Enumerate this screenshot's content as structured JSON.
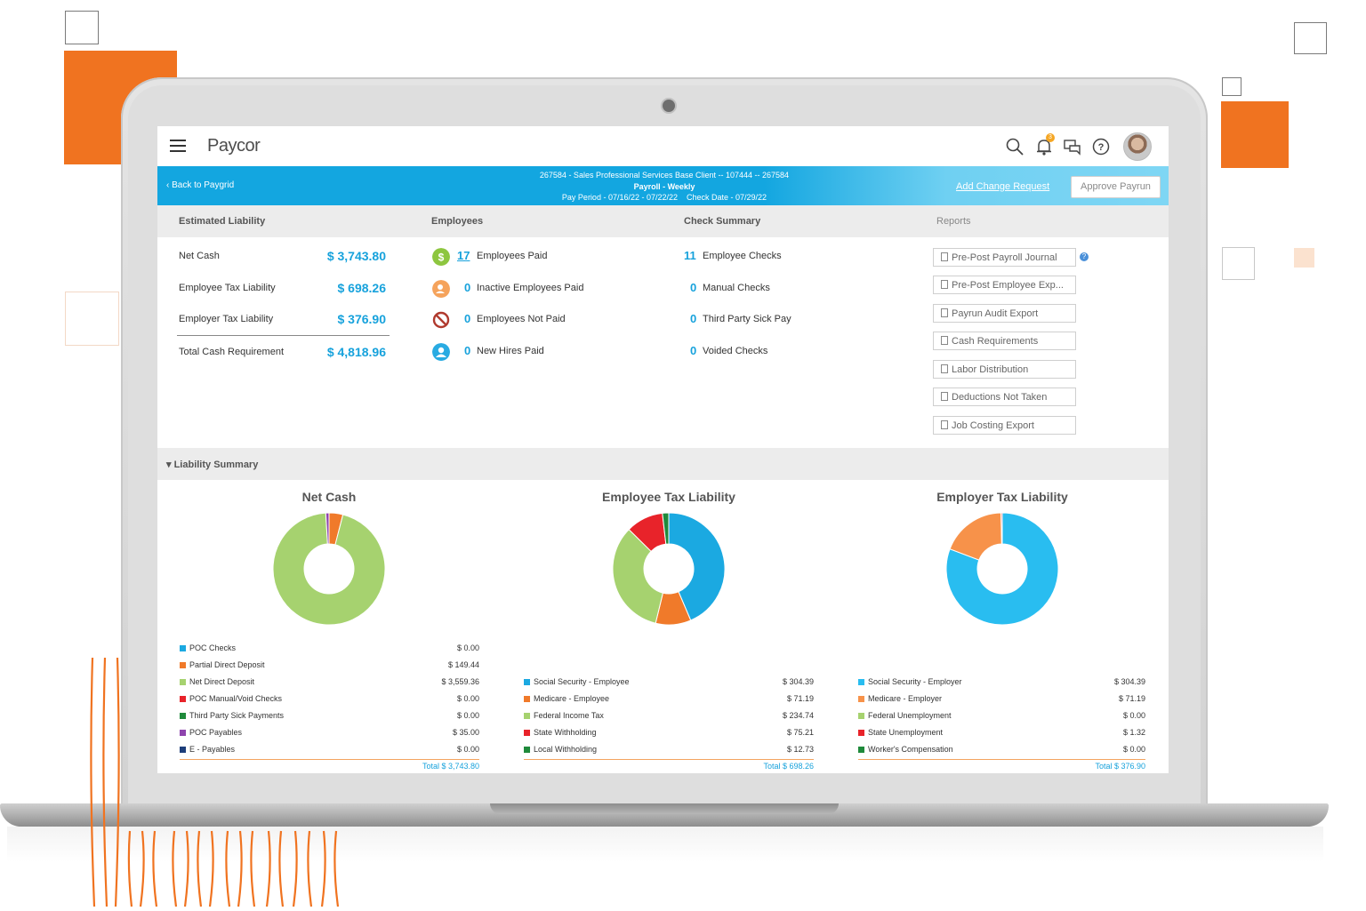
{
  "app": {
    "logo": "Paycor",
    "notification_count": "3"
  },
  "bluebar": {
    "back_label": "Back to Paygrid",
    "client_line": "267584 - Sales Professional Services Base Client -- 107444 -- 267584",
    "payroll_line": "Payroll - Weekly",
    "period_line": "Pay Period - 07/16/22 - 07/22/22    Check Date - 07/29/22",
    "add_change_label": "Add Change Request",
    "approve_label": "Approve Payrun"
  },
  "sections": {
    "estimated_liability": "Estimated Liability",
    "employees": "Employees",
    "check_summary": "Check Summary",
    "reports": "Reports"
  },
  "liability": [
    {
      "label": "Net Cash",
      "amount": "$ 3,743.80"
    },
    {
      "label": "Employee Tax Liability",
      "amount": "$ 698.26"
    },
    {
      "label": "Employer Tax Liability",
      "amount": "$ 376.90"
    },
    {
      "label": "Total Cash Requirement",
      "amount": "$ 4,818.96"
    }
  ],
  "employees": [
    {
      "count": "17",
      "label": "Employees Paid",
      "icon": "dollar-icon",
      "color": "#8dc63f"
    },
    {
      "count": "0",
      "label": "Inactive Employees Paid",
      "icon": "inactive-user-icon",
      "color": "#f5a35c"
    },
    {
      "count": "0",
      "label": "Employees Not Paid",
      "icon": "prohibited-icon",
      "color": "#c0392b"
    },
    {
      "count": "0",
      "label": "New Hires Paid",
      "icon": "new-hire-icon",
      "color": "#29abe2"
    }
  ],
  "checks": [
    {
      "count": "11",
      "label": "Employee Checks"
    },
    {
      "count": "0",
      "label": "Manual Checks"
    },
    {
      "count": "0",
      "label": "Third Party Sick Pay"
    },
    {
      "count": "0",
      "label": "Voided Checks"
    }
  ],
  "reports": [
    "Pre-Post Payroll Journal",
    "Pre-Post Employee Exp...",
    "Payrun Audit Export",
    "Cash Requirements",
    "Labor Distribution",
    "Deductions Not Taken",
    "Job Costing Export"
  ],
  "liability_summary_label": "Liability Summary",
  "chart_data": [
    {
      "type": "pie",
      "title": "Net Cash",
      "categories": [
        "POC Checks",
        "Partial Direct Deposit",
        "Net Direct Deposit",
        "POC Manual/Void Checks",
        "Third Party Sick Payments",
        "POC Payables",
        "E - Payables"
      ],
      "values": [
        0.0,
        149.44,
        3559.36,
        0.0,
        0.0,
        35.0,
        0.0
      ],
      "labels": [
        "$ 0.00",
        "$ 149.44",
        "$ 3,559.36",
        "$ 0.00",
        "$ 0.00",
        "$ 35.00",
        "$ 0.00"
      ],
      "colors": [
        "#1ba9e1",
        "#f07a2a",
        "#a6d26f",
        "#e8232a",
        "#1f8a3b",
        "#8e44ad",
        "#1d3e7a"
      ],
      "total": "Total $ 3,743.80"
    },
    {
      "type": "pie",
      "title": "Employee Tax Liability",
      "categories": [
        "Social Security - Employee",
        "Medicare - Employee",
        "Federal Income Tax",
        "State Withholding",
        "Local Withholding"
      ],
      "values": [
        304.39,
        71.19,
        234.74,
        75.21,
        12.73
      ],
      "labels": [
        "$ 304.39",
        "$ 71.19",
        "$ 234.74",
        "$ 75.21",
        "$ 12.73"
      ],
      "colors": [
        "#1ba9e1",
        "#f07a2a",
        "#a6d26f",
        "#e8232a",
        "#1f8a3b"
      ],
      "total": "Total $ 698.26"
    },
    {
      "type": "pie",
      "title": "Employer Tax Liability",
      "categories": [
        "Social Security - Employer",
        "Medicare - Employer",
        "Federal Unemployment",
        "State Unemployment",
        "Worker's Compensation"
      ],
      "values": [
        304.39,
        71.19,
        0.0,
        1.32,
        0.0
      ],
      "labels": [
        "$ 304.39",
        "$ 71.19",
        "$ 0.00",
        "$ 1.32",
        "$ 0.00"
      ],
      "colors": [
        "#29bdf0",
        "#f7924a",
        "#a6d26f",
        "#e8232a",
        "#1f8a3b"
      ],
      "total": "Total $ 376.90"
    }
  ]
}
